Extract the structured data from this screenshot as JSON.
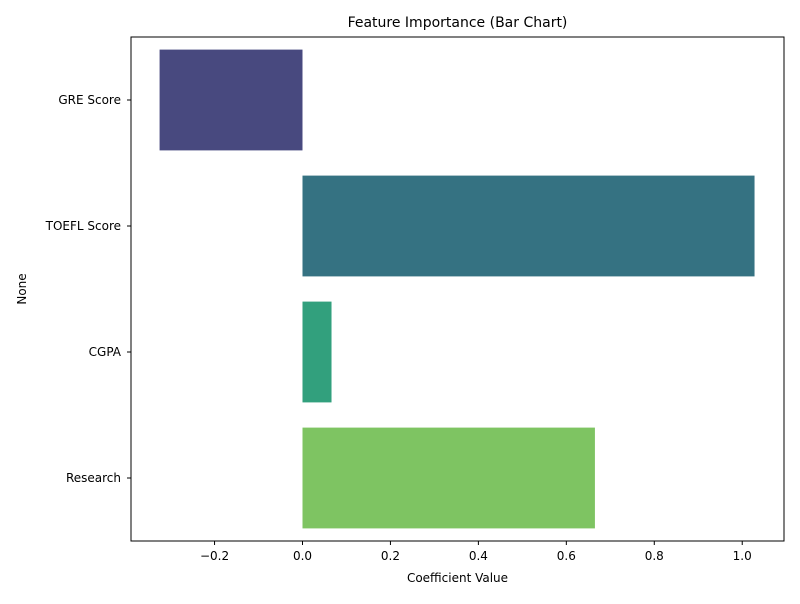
{
  "chart_data": {
    "type": "bar",
    "orientation": "horizontal",
    "title": "Feature Importance (Bar Chart)",
    "xlabel": "Coefficient Value",
    "ylabel": "None",
    "categories": [
      "GRE Score",
      "TOEFL Score",
      "CGPA",
      "Research"
    ],
    "values": [
      -0.325,
      1.028,
      0.066,
      0.665
    ],
    "colors": [
      "#48497f",
      "#357282",
      "#32a07d",
      "#7ec462"
    ],
    "xlim": [
      -0.39,
      1.095
    ],
    "xticks": [
      -0.2,
      0.0,
      0.2,
      0.4,
      0.6,
      0.8,
      1.0
    ],
    "xtick_labels": [
      "−0.2",
      "0.0",
      "0.2",
      "0.4",
      "0.6",
      "0.8",
      "1.0"
    ],
    "grid": false,
    "legend": "none"
  }
}
